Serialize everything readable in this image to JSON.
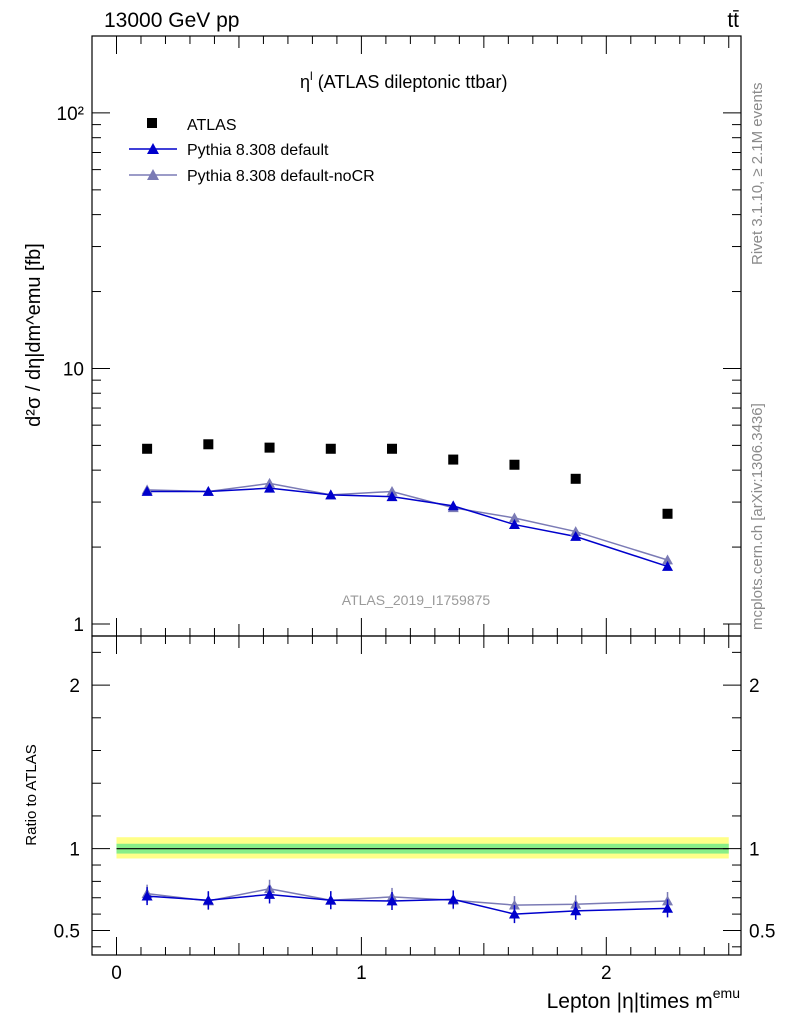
{
  "header": {
    "energy_label": "13000 GeV pp",
    "process_label": "tt̄"
  },
  "side_labels": {
    "rivet": "Rivet 3.1.10, ≥ 2.1M events",
    "mcplots": "mcplots.cern.ch [arXiv:1306.3436]"
  },
  "watermark": "ATLAS_2019_I1759875",
  "colors": {
    "atlas": "#000000",
    "default": "#0000cc",
    "nocr": "#7b7bb5",
    "band_outer": "#ffff88",
    "band_inner": "#88ee88"
  },
  "chart_data": [
    {
      "type": "scatter",
      "title": "η",
      "title_sup": "l",
      "title_rest": " (ATLAS dileptonic ttbar)",
      "ylabel": "d²σ / dη|dm^emu [fb]",
      "yscale": "log",
      "ylim": [
        1,
        200
      ],
      "y_ticks": [
        1,
        10,
        100
      ],
      "y_tick_labels": [
        "1",
        "10",
        "10²"
      ],
      "xlim": [
        -0.1,
        2.55
      ],
      "x": [
        0.125,
        0.375,
        0.625,
        0.875,
        1.125,
        1.375,
        1.625,
        1.875,
        2.25
      ],
      "series": [
        {
          "name": "ATLAS",
          "marker": "square",
          "values": [
            4.85,
            5.05,
            4.9,
            4.85,
            4.85,
            4.4,
            4.2,
            3.7,
            2.7
          ]
        },
        {
          "name": "Pythia 8.308 default",
          "marker": "triangle",
          "values": [
            3.3,
            3.3,
            3.4,
            3.2,
            3.15,
            2.9,
            2.45,
            2.2,
            1.68
          ]
        },
        {
          "name": "Pythia 8.308 default-noCR",
          "marker": "triangle",
          "values": [
            3.35,
            3.3,
            3.55,
            3.2,
            3.3,
            2.85,
            2.6,
            2.3,
            1.78
          ]
        }
      ]
    },
    {
      "type": "line",
      "ylabel": "Ratio to ATLAS",
      "xlabel": "Lepton |η|times m",
      "xlabel_sup": "emu",
      "ylim": [
        0.35,
        2.3
      ],
      "y_ticks": [
        0.5,
        1,
        2
      ],
      "y_tick_labels": [
        "0.5",
        "1",
        "2"
      ],
      "x_ticks": [
        0,
        1,
        2
      ],
      "x_tick_labels": [
        "0",
        "1",
        "2"
      ],
      "reference": 1,
      "band_outer": [
        0.94,
        1.07
      ],
      "band_inner": [
        0.97,
        1.03
      ],
      "x": [
        0.125,
        0.375,
        0.625,
        0.875,
        1.125,
        1.375,
        1.625,
        1.875,
        2.25
      ],
      "series": [
        {
          "name": "Pythia 8.308 default",
          "values": [
            0.71,
            0.685,
            0.72,
            0.685,
            0.68,
            0.69,
            0.6,
            0.62,
            0.635
          ]
        },
        {
          "name": "Pythia 8.308 default-noCR",
          "values": [
            0.725,
            0.68,
            0.755,
            0.685,
            0.705,
            0.685,
            0.655,
            0.66,
            0.68
          ]
        }
      ]
    }
  ]
}
